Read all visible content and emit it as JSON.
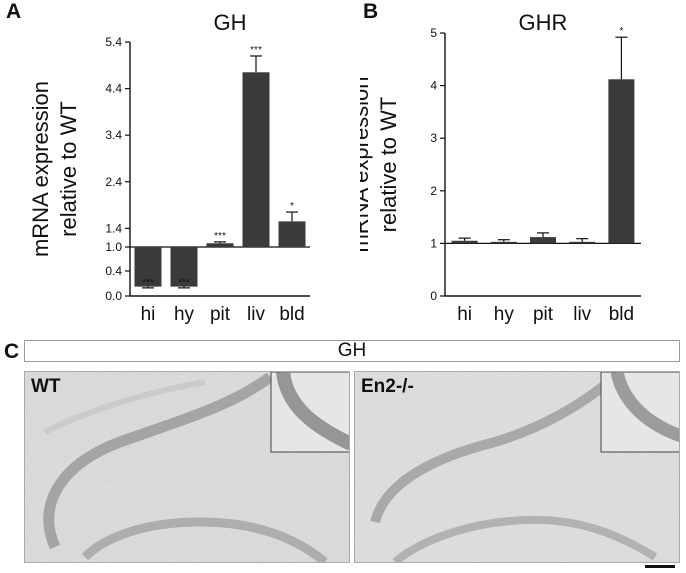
{
  "panels": {
    "a": {
      "letter": "A"
    },
    "b": {
      "letter": "B"
    },
    "c": {
      "letter": "C",
      "title": "GH"
    }
  },
  "chart_data": [
    {
      "type": "bar",
      "title": "GH",
      "ylabel": "mRNA expression relative to WT",
      "ylabel_lines": [
        "mRNA expression",
        "relative to WT"
      ],
      "categories": [
        "hi",
        "hy",
        "pit",
        "liv",
        "bld"
      ],
      "values": [
        0.15,
        0.15,
        1.08,
        4.75,
        1.55
      ],
      "errors": [
        0.02,
        0.02,
        0.03,
        0.35,
        0.2
      ],
      "significance": [
        "***",
        "***",
        "***",
        "***",
        "*"
      ],
      "baseline": 1.0,
      "ylim": [
        0,
        5.4
      ],
      "yticks": [
        0.0,
        0.4,
        1.0,
        1.4,
        2.4,
        3.4,
        4.4,
        5.4
      ],
      "ytick_labels": [
        "0.0",
        "0.4",
        "1.0",
        "1.4",
        "2.4",
        "3.4",
        "4.4",
        "5.4"
      ],
      "axis_break": [
        0.4,
        1.0
      ],
      "bar_color": "#3a3a3a",
      "grid": false
    },
    {
      "type": "bar",
      "title": "GHR",
      "ylabel": "mRNA expression relative to WT",
      "ylabel_lines": [
        "mRNA expression",
        "relative to WT"
      ],
      "categories": [
        "hi",
        "hy",
        "pit",
        "liv",
        "bld"
      ],
      "values": [
        1.05,
        1.03,
        1.12,
        1.03,
        4.12
      ],
      "errors": [
        0.05,
        0.04,
        0.08,
        0.06,
        0.8
      ],
      "significance": [
        "",
        "",
        "",
        "",
        "*"
      ],
      "baseline": 1.0,
      "ylim": [
        0,
        5
      ],
      "yticks": [
        0,
        1,
        2,
        3,
        4,
        5
      ],
      "ytick_labels": [
        "0",
        "1",
        "2",
        "3",
        "4",
        "5"
      ],
      "bar_color": "#3a3a3a",
      "grid": false
    }
  ],
  "micrographs": [
    {
      "label": "WT"
    },
    {
      "label": "En2-/-"
    }
  ]
}
